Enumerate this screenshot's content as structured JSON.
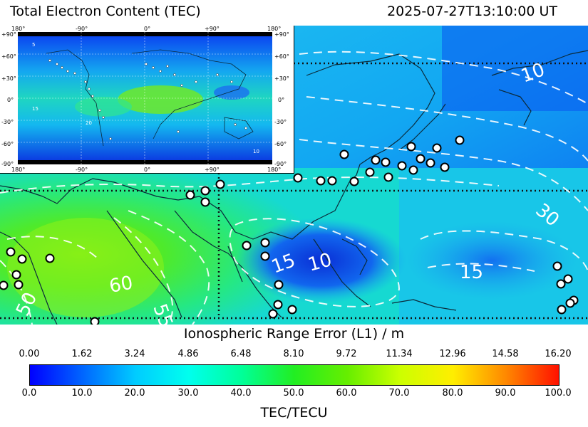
{
  "header": {
    "title": "Total Electron Content (TEC)",
    "timestamp": "2025-07-27T13:10:00 UT"
  },
  "inset_map": {
    "top_longitudes": [
      "180°",
      "-90°",
      "0°",
      "+90°",
      "180°"
    ],
    "bottom_longitudes": [
      "180°",
      "-90°",
      "0°",
      "+90°",
      "180°"
    ],
    "latitudes": [
      "+90°",
      "+60°",
      "+30°",
      "0°",
      "-30°",
      "-60°",
      "-90°"
    ],
    "contour_labels": [
      "5",
      "15",
      "20",
      "10"
    ]
  },
  "main_map": {
    "contour_labels": [
      "10",
      "30",
      "15",
      "15",
      "10",
      "60",
      "55",
      "50"
    ]
  },
  "colorbar": {
    "top_title": "Ionospheric Range Error (L1) / m",
    "top_ticks": [
      "0.00",
      "1.62",
      "3.24",
      "4.86",
      "6.48",
      "8.10",
      "9.72",
      "11.34",
      "12.96",
      "14.58",
      "16.20"
    ],
    "bottom_ticks": [
      "0.0",
      "10.0",
      "20.0",
      "30.0",
      "40.0",
      "50.0",
      "60.0",
      "70.0",
      "80.0",
      "90.0",
      "100.0"
    ],
    "bottom_title": "TEC/TECU",
    "colors": [
      "#0000ff",
      "#00ccff",
      "#00ff99",
      "#22ee22",
      "#ccff00",
      "#ffee00",
      "#ff1100"
    ]
  }
}
